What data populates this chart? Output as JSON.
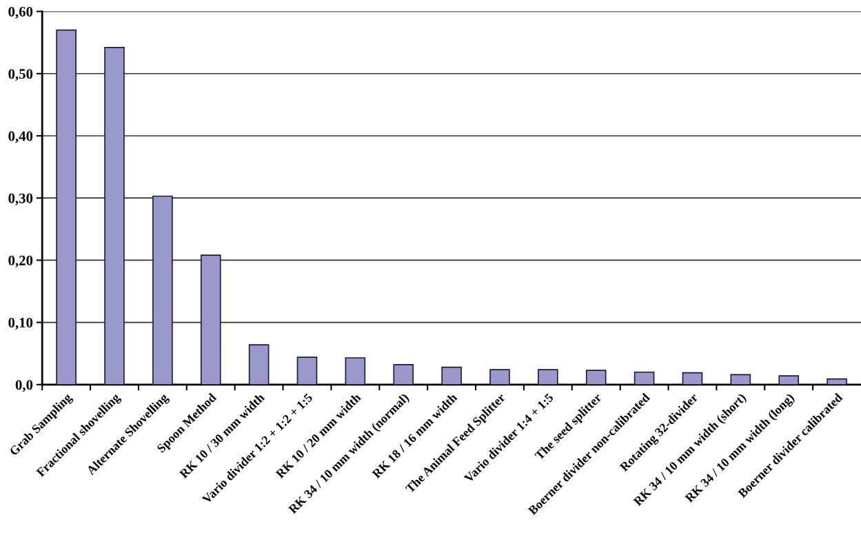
{
  "chart_data": {
    "type": "bar",
    "categories": [
      "Grab Sampling",
      "Fractional shovelling",
      "Alternate Shovelling",
      "Spoon Method",
      "RK 10 / 30 mm width",
      "Vario divider 1:2 + 1:2 + 1:5",
      "RK 10 / 20 mm width",
      "RK 34 / 10 mm width (normal)",
      "RK 18 / 16 mm width",
      "The Animal Feed Splitter",
      "Vario divider 1:4 + 1:5",
      "The seed splitter",
      "Boerner divider non-calibrated",
      "Rotating 32-divider",
      "RK 34 / 10 mm width (short)",
      "RK 34 / 10 mm width (long)",
      "Boerner divider calibrated"
    ],
    "values": [
      0.57,
      0.542,
      0.303,
      0.208,
      0.064,
      0.044,
      0.043,
      0.032,
      0.028,
      0.024,
      0.024,
      0.023,
      0.02,
      0.019,
      0.016,
      0.014,
      0.009
    ],
    "color": "#9999cc",
    "ylim": [
      0,
      0.6
    ],
    "yticks": [
      {
        "value": 0,
        "label": "0,0"
      },
      {
        "value": 0.1,
        "label": "0,10"
      },
      {
        "value": 0.2,
        "label": "0,20"
      },
      {
        "value": 0.3,
        "label": "0,30"
      },
      {
        "value": 0.4,
        "label": "0,40"
      },
      {
        "value": 0.5,
        "label": "0,50"
      },
      {
        "value": 0.6,
        "label": "0,60"
      }
    ],
    "grid": "y"
  }
}
